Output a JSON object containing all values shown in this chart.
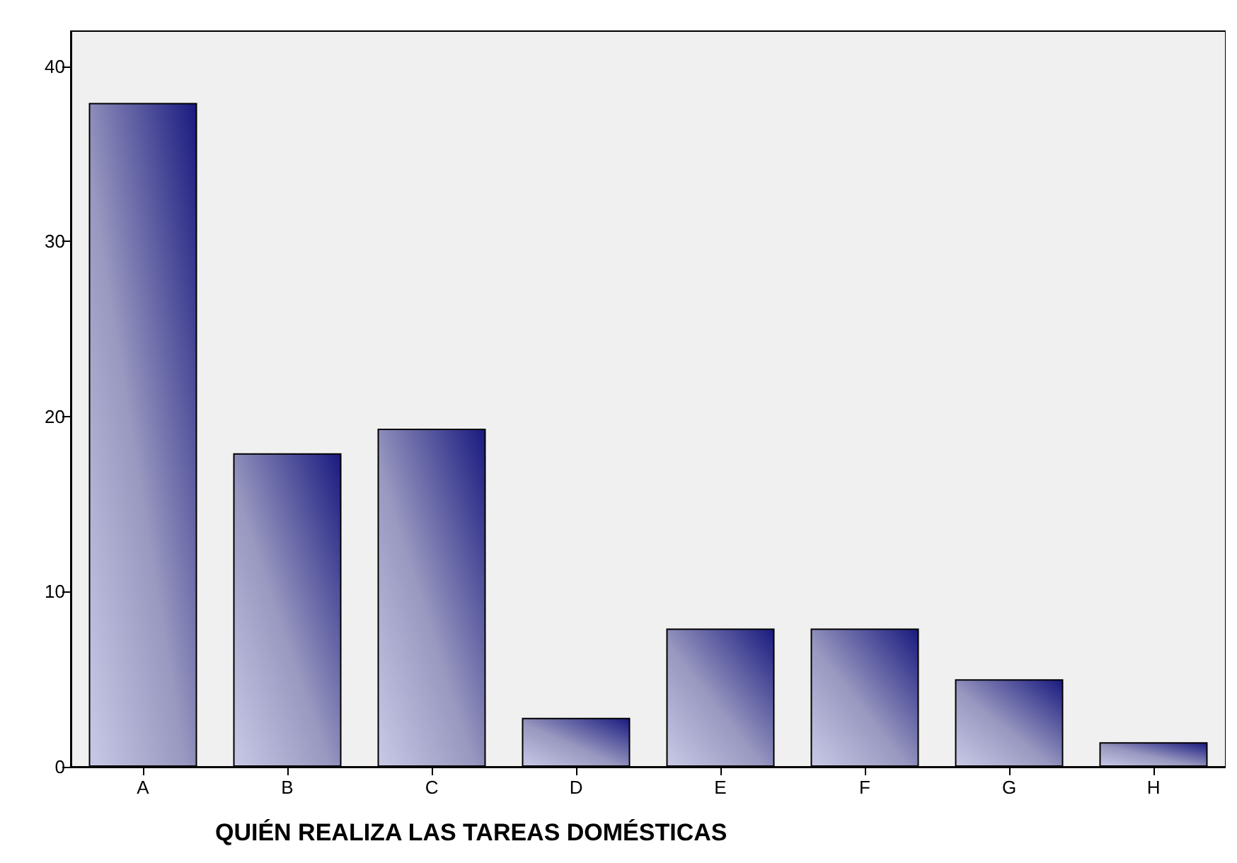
{
  "chart_data": {
    "type": "bar",
    "xlabel": "QUIÉN REALIZA LAS TAREAS DOMÉSTICAS",
    "categories": [
      "A",
      "B",
      "C",
      "D",
      "E",
      "F",
      "G",
      "H"
    ],
    "values": [
      37.9,
      17.9,
      19.3,
      2.8,
      7.9,
      7.9,
      5.0,
      1.4
    ],
    "ylim": [
      0,
      42
    ],
    "yticks": [
      0,
      10,
      20,
      30,
      40
    ],
    "grid": false
  }
}
